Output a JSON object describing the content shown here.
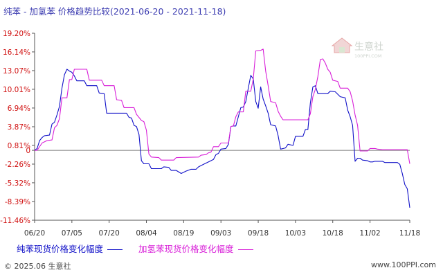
{
  "header": {
    "title": "纯苯 - 加氢苯 价格趋势比较",
    "date_range": "(2021-06-20 - 2021-11-18)"
  },
  "watermark": {
    "text": "生意社",
    "subtext": "100PPI.COM"
  },
  "footer": {
    "copyright": "© 2025.06 生意社",
    "url": "www.100PPI.com"
  },
  "colors": {
    "series1": "#1010c8",
    "series2": "#d81ed8",
    "zero_line": "#7a7a7a",
    "title": "#3b3bb0",
    "tick": "#d01010"
  },
  "chart_data": {
    "type": "line",
    "title": "纯苯 - 加氢苯 价格趋势比较(2021-06-20 - 2021-11-18)",
    "xlabel": "",
    "ylabel": "",
    "x_range": [
      "2021-06-20",
      "2021-11-18"
    ],
    "ylim": [
      -11.46,
      19.2
    ],
    "y_ticks": [
      "19.20%",
      "16.14%",
      "13.07%",
      "10.01%",
      "6.94%",
      "3.87%",
      "0.81%",
      "0",
      "-2.26%",
      "-5.32%",
      "-8.39%",
      "-11.46%"
    ],
    "y_tick_values": [
      19.2,
      16.14,
      13.07,
      10.01,
      6.94,
      3.87,
      0.81,
      0,
      -2.26,
      -5.32,
      -8.39,
      -11.46
    ],
    "x_ticks": [
      {
        "date": "2021-06-20",
        "label": "06/20"
      },
      {
        "date": "2021-07-05",
        "label": "07/05"
      },
      {
        "date": "2021-07-20",
        "label": "07/20"
      },
      {
        "date": "2021-08-04",
        "label": "08/04"
      },
      {
        "date": "2021-08-19",
        "label": "08/19"
      },
      {
        "date": "2021-09-03",
        "label": "09/03"
      },
      {
        "date": "2021-09-18",
        "label": "09/18"
      },
      {
        "date": "2021-10-03",
        "label": "10/03"
      },
      {
        "date": "2021-10-18",
        "label": "10/18"
      },
      {
        "date": "2021-11-02",
        "label": "11/02"
      },
      {
        "date": "2021-11-18",
        "label": "11/18"
      }
    ],
    "grid": false,
    "legend": "bottom",
    "series": [
      {
        "name": "纯苯现货价格变化幅度",
        "color": "#1010c8",
        "points": [
          [
            "2021-06-20",
            0
          ],
          [
            "2021-06-21",
            0.3
          ],
          [
            "2021-06-22",
            1.6
          ],
          [
            "2021-06-23",
            2.1
          ],
          [
            "2021-06-24",
            2.4
          ],
          [
            "2021-06-26",
            2.5
          ],
          [
            "2021-06-27",
            4.3
          ],
          [
            "2021-06-28",
            4.6
          ],
          [
            "2021-06-29",
            5.8
          ],
          [
            "2021-06-30",
            7.2
          ],
          [
            "2021-07-01",
            10.2
          ],
          [
            "2021-07-02",
            12.4
          ],
          [
            "2021-07-03",
            13.3
          ],
          [
            "2021-07-04",
            13.0
          ],
          [
            "2021-07-05",
            12.8
          ],
          [
            "2021-07-06",
            12.2
          ],
          [
            "2021-07-07",
            11.4
          ],
          [
            "2021-07-10",
            11.4
          ],
          [
            "2021-07-11",
            10.6
          ],
          [
            "2021-07-15",
            10.6
          ],
          [
            "2021-07-16",
            9.4
          ],
          [
            "2021-07-18",
            9.3
          ],
          [
            "2021-07-19",
            6.1
          ],
          [
            "2021-07-27",
            6.1
          ],
          [
            "2021-07-28",
            5.4
          ],
          [
            "2021-07-29",
            5.3
          ],
          [
            "2021-07-30",
            4.1
          ],
          [
            "2021-07-31",
            3.9
          ],
          [
            "2021-08-01",
            2.6
          ],
          [
            "2021-08-02",
            -1.7
          ],
          [
            "2021-08-03",
            -2.2
          ],
          [
            "2021-08-05",
            -2.2
          ],
          [
            "2021-08-06",
            -3.0
          ],
          [
            "2021-08-10",
            -3.0
          ],
          [
            "2021-08-11",
            -2.7
          ],
          [
            "2021-08-13",
            -2.8
          ],
          [
            "2021-08-14",
            -3.3
          ],
          [
            "2021-08-16",
            -3.3
          ],
          [
            "2021-08-18",
            -3.8
          ],
          [
            "2021-08-20",
            -3.4
          ],
          [
            "2021-08-22",
            -3.1
          ],
          [
            "2021-08-24",
            -3.1
          ],
          [
            "2021-08-25",
            -2.7
          ],
          [
            "2021-08-27",
            -2.3
          ],
          [
            "2021-08-29",
            -1.9
          ],
          [
            "2021-08-31",
            -1.5
          ],
          [
            "2021-09-01",
            -0.7
          ],
          [
            "2021-09-02",
            -0.5
          ],
          [
            "2021-09-03",
            0.2
          ],
          [
            "2021-09-05",
            0.3
          ],
          [
            "2021-09-06",
            1.0
          ],
          [
            "2021-09-07",
            3.9
          ],
          [
            "2021-09-08",
            4.0
          ],
          [
            "2021-09-09",
            4.0
          ],
          [
            "2021-09-10",
            5.5
          ],
          [
            "2021-09-11",
            7.0
          ],
          [
            "2021-09-12",
            7.1
          ],
          [
            "2021-09-13",
            8.0
          ],
          [
            "2021-09-14",
            10.2
          ],
          [
            "2021-09-15",
            12.3
          ],
          [
            "2021-09-16",
            11.7
          ],
          [
            "2021-09-17",
            8.0
          ],
          [
            "2021-09-18",
            6.9
          ],
          [
            "2021-09-19",
            10.4
          ],
          [
            "2021-09-20",
            8.4
          ],
          [
            "2021-09-21",
            7.3
          ],
          [
            "2021-09-22",
            6.1
          ],
          [
            "2021-09-23",
            4.2
          ],
          [
            "2021-09-25",
            4.0
          ],
          [
            "2021-09-26",
            2.4
          ],
          [
            "2021-09-27",
            0.2
          ],
          [
            "2021-09-29",
            0.4
          ],
          [
            "2021-09-30",
            1.0
          ],
          [
            "2021-10-02",
            0.8
          ],
          [
            "2021-10-03",
            2.3
          ],
          [
            "2021-10-06",
            2.3
          ],
          [
            "2021-10-07",
            3.4
          ],
          [
            "2021-10-08",
            3.4
          ],
          [
            "2021-10-09",
            7.8
          ],
          [
            "2021-10-10",
            10.4
          ],
          [
            "2021-10-11",
            10.6
          ],
          [
            "2021-10-12",
            9.3
          ],
          [
            "2021-10-16",
            9.3
          ],
          [
            "2021-10-17",
            9.7
          ],
          [
            "2021-10-19",
            9.6
          ],
          [
            "2021-10-21",
            8.8
          ],
          [
            "2021-10-23",
            8.6
          ],
          [
            "2021-10-24",
            6.6
          ],
          [
            "2021-10-25",
            5.5
          ],
          [
            "2021-10-26",
            4.1
          ],
          [
            "2021-10-27",
            -1.8
          ],
          [
            "2021-10-28",
            -1.3
          ],
          [
            "2021-10-29",
            -1.3
          ],
          [
            "2021-10-30",
            -1.6
          ],
          [
            "2021-11-01",
            -1.7
          ],
          [
            "2021-11-02",
            -1.9
          ],
          [
            "2021-11-03",
            -1.9
          ],
          [
            "2021-11-04",
            -1.8
          ],
          [
            "2021-11-07",
            -1.8
          ],
          [
            "2021-11-08",
            -2.0
          ],
          [
            "2021-11-13",
            -2.0
          ],
          [
            "2021-11-14",
            -2.3
          ],
          [
            "2021-11-15",
            -3.8
          ],
          [
            "2021-11-16",
            -5.6
          ],
          [
            "2021-11-17",
            -6.3
          ],
          [
            "2021-11-18",
            -9.4
          ]
        ]
      },
      {
        "name": "加氢苯现货价格变化幅度",
        "color": "#d81ed8",
        "points": [
          [
            "2021-06-20",
            0
          ],
          [
            "2021-06-21",
            0
          ],
          [
            "2021-06-23",
            1.2
          ],
          [
            "2021-06-25",
            1.6
          ],
          [
            "2021-06-27",
            1.7
          ],
          [
            "2021-06-28",
            3.7
          ],
          [
            "2021-06-29",
            4.1
          ],
          [
            "2021-06-30",
            5.2
          ],
          [
            "2021-07-01",
            8.6
          ],
          [
            "2021-07-03",
            8.6
          ],
          [
            "2021-07-04",
            11.6
          ],
          [
            "2021-07-05",
            11.6
          ],
          [
            "2021-07-06",
            13.3
          ],
          [
            "2021-07-11",
            13.3
          ],
          [
            "2021-07-12",
            11.5
          ],
          [
            "2021-07-17",
            11.5
          ],
          [
            "2021-07-18",
            10.6
          ],
          [
            "2021-07-22",
            10.6
          ],
          [
            "2021-07-23",
            8.3
          ],
          [
            "2021-07-25",
            8.2
          ],
          [
            "2021-07-26",
            7.0
          ],
          [
            "2021-07-30",
            7.0
          ],
          [
            "2021-07-31",
            5.9
          ],
          [
            "2021-08-02",
            4.9
          ],
          [
            "2021-08-03",
            4.7
          ],
          [
            "2021-08-04",
            3.3
          ],
          [
            "2021-08-05",
            -0.6
          ],
          [
            "2021-08-06",
            -1.1
          ],
          [
            "2021-08-09",
            -1.2
          ],
          [
            "2021-08-10",
            -1.6
          ],
          [
            "2021-08-15",
            -1.6
          ],
          [
            "2021-08-16",
            -1.2
          ],
          [
            "2021-08-25",
            -1.1
          ],
          [
            "2021-08-26",
            -0.8
          ],
          [
            "2021-08-28",
            -0.7
          ],
          [
            "2021-08-29",
            -0.4
          ],
          [
            "2021-08-30",
            -0.3
          ],
          [
            "2021-08-31",
            0.6
          ],
          [
            "2021-09-02",
            0.6
          ],
          [
            "2021-09-03",
            1.2
          ],
          [
            "2021-09-06",
            1.2
          ],
          [
            "2021-09-07",
            3.9
          ],
          [
            "2021-09-08",
            4.0
          ],
          [
            "2021-09-09",
            5.5
          ],
          [
            "2021-09-10",
            6.3
          ],
          [
            "2021-09-12",
            6.3
          ],
          [
            "2021-09-13",
            9.7
          ],
          [
            "2021-09-15",
            9.7
          ],
          [
            "2021-09-16",
            11.7
          ],
          [
            "2021-09-17",
            16.3
          ],
          [
            "2021-09-19",
            16.4
          ],
          [
            "2021-09-20",
            16.6
          ],
          [
            "2021-09-21",
            13.0
          ],
          [
            "2021-09-22",
            10.6
          ],
          [
            "2021-09-23",
            8.0
          ],
          [
            "2021-09-25",
            7.8
          ],
          [
            "2021-09-26",
            6.4
          ],
          [
            "2021-09-27",
            5.6
          ],
          [
            "2021-09-28",
            5.0
          ],
          [
            "2021-10-02",
            5.0
          ],
          [
            "2021-10-03",
            5.0
          ],
          [
            "2021-10-08",
            5.0
          ],
          [
            "2021-10-09",
            6.0
          ],
          [
            "2021-10-10",
            8.8
          ],
          [
            "2021-10-11",
            10.0
          ],
          [
            "2021-10-12",
            12.1
          ],
          [
            "2021-10-13",
            14.9
          ],
          [
            "2021-10-14",
            15.0
          ],
          [
            "2021-10-15",
            14.3
          ],
          [
            "2021-10-16",
            13.3
          ],
          [
            "2021-10-17",
            12.8
          ],
          [
            "2021-10-18",
            11.5
          ],
          [
            "2021-10-20",
            11.3
          ],
          [
            "2021-10-21",
            10.2
          ],
          [
            "2021-10-24",
            10.2
          ],
          [
            "2021-10-25",
            9.6
          ],
          [
            "2021-10-26",
            8.1
          ],
          [
            "2021-10-27",
            5.8
          ],
          [
            "2021-10-28",
            4.1
          ],
          [
            "2021-10-29",
            -0.1
          ],
          [
            "2021-11-01",
            -0.1
          ],
          [
            "2021-11-02",
            0.3
          ],
          [
            "2021-11-04",
            0.3
          ],
          [
            "2021-11-05",
            0.2
          ],
          [
            "2021-11-07",
            0.1
          ],
          [
            "2021-11-17",
            0.1
          ],
          [
            "2021-11-18",
            -2.2
          ]
        ]
      }
    ]
  }
}
